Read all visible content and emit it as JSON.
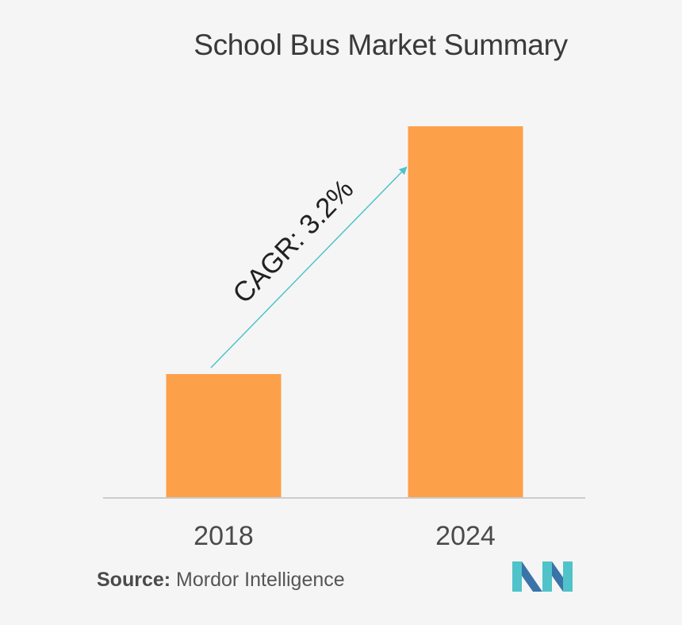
{
  "chart_data": {
    "type": "bar",
    "title": "School Bus Market Summary",
    "categories": [
      "2018",
      "2024"
    ],
    "values": [
      1.0,
      3.0
    ],
    "ylim": [
      0,
      3.0
    ],
    "xlabel": "",
    "ylabel": "",
    "grid": false,
    "annotation": "CAGR: 3.2%"
  },
  "colors": {
    "bar": "#fda04a",
    "axis": "#cccccc",
    "arrow": "#4fc3c9",
    "logo_teal": "#4fc3c9",
    "logo_blue": "#3a73a8"
  },
  "footer": {
    "source_label": "Source:",
    "source_value": "Mordor Intelligence"
  },
  "logo": {
    "icon": "mordor-intelligence-logo-icon"
  }
}
